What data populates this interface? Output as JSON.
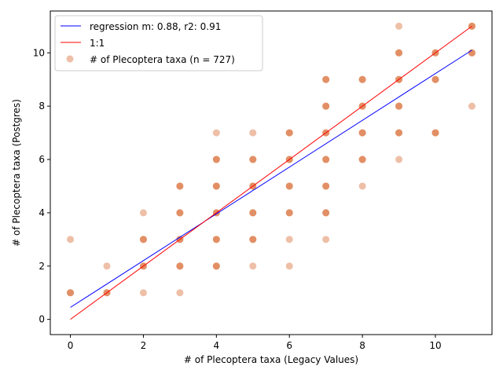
{
  "chart_data": {
    "type": "scatter",
    "xlabel": "# of Plecoptera taxa (Legacy Values)",
    "ylabel": "# of Plecoptera taxa (Postgres)",
    "xlim": [
      -0.55,
      11.55
    ],
    "ylim": [
      -0.57,
      11.57
    ],
    "xticks": [
      0,
      2,
      4,
      6,
      8,
      10
    ],
    "yticks": [
      0,
      2,
      4,
      6,
      8,
      10
    ],
    "grid": false,
    "legend_position": "top-left",
    "legend": [
      {
        "label": "regression m: 0.88, r2: 0.91",
        "kind": "line",
        "color": "#0000ff"
      },
      {
        "label": "1:1",
        "kind": "line",
        "color": "#ff0000"
      },
      {
        "label": "# of Plecoptera taxa (n = 727)",
        "kind": "marker",
        "color": "#dd7f4f"
      }
    ],
    "scatter": {
      "name": "# of Plecoptera taxa (n = 727)",
      "color": "#dd7f4f",
      "points": [
        [
          0,
          1,
          1
        ],
        [
          0,
          3,
          0
        ],
        [
          1,
          1,
          1
        ],
        [
          1,
          2,
          0
        ],
        [
          2,
          1,
          0
        ],
        [
          2,
          2,
          1
        ],
        [
          2,
          3,
          1
        ],
        [
          2,
          4,
          0
        ],
        [
          3,
          1,
          0
        ],
        [
          3,
          2,
          1
        ],
        [
          3,
          3,
          1
        ],
        [
          3,
          4,
          1
        ],
        [
          3,
          5,
          1
        ],
        [
          4,
          2,
          1
        ],
        [
          4,
          3,
          1
        ],
        [
          4,
          4,
          1
        ],
        [
          4,
          5,
          1
        ],
        [
          4,
          6,
          1
        ],
        [
          4,
          7,
          0
        ],
        [
          5,
          2,
          0
        ],
        [
          5,
          3,
          1
        ],
        [
          5,
          4,
          1
        ],
        [
          5,
          5,
          1
        ],
        [
          5,
          6,
          1
        ],
        [
          5,
          7,
          0
        ],
        [
          6,
          2,
          0
        ],
        [
          6,
          3,
          0
        ],
        [
          6,
          4,
          1
        ],
        [
          6,
          5,
          1
        ],
        [
          6,
          6,
          1
        ],
        [
          6,
          7,
          1
        ],
        [
          7,
          3,
          0
        ],
        [
          7,
          4,
          1
        ],
        [
          7,
          5,
          1
        ],
        [
          7,
          6,
          1
        ],
        [
          7,
          7,
          1
        ],
        [
          7,
          8,
          1
        ],
        [
          7,
          9,
          1
        ],
        [
          8,
          5,
          0
        ],
        [
          8,
          6,
          1
        ],
        [
          8,
          7,
          1
        ],
        [
          8,
          8,
          1
        ],
        [
          8,
          9,
          1
        ],
        [
          9,
          6,
          0
        ],
        [
          9,
          7,
          1
        ],
        [
          9,
          8,
          1
        ],
        [
          9,
          9,
          1
        ],
        [
          9,
          10,
          1
        ],
        [
          9,
          11,
          0
        ],
        [
          10,
          7,
          1
        ],
        [
          10,
          9,
          1
        ],
        [
          10,
          10,
          1
        ],
        [
          11,
          8,
          0
        ],
        [
          11,
          10,
          1
        ],
        [
          11,
          11,
          1
        ]
      ]
    },
    "lines": [
      {
        "name": "regression m: 0.88, r2: 0.91",
        "color": "#0000ff",
        "x": [
          0,
          11
        ],
        "y": [
          0.45,
          10.1
        ]
      },
      {
        "name": "1:1",
        "color": "#ff0000",
        "x": [
          0,
          11
        ],
        "y": [
          0,
          11
        ]
      }
    ]
  }
}
